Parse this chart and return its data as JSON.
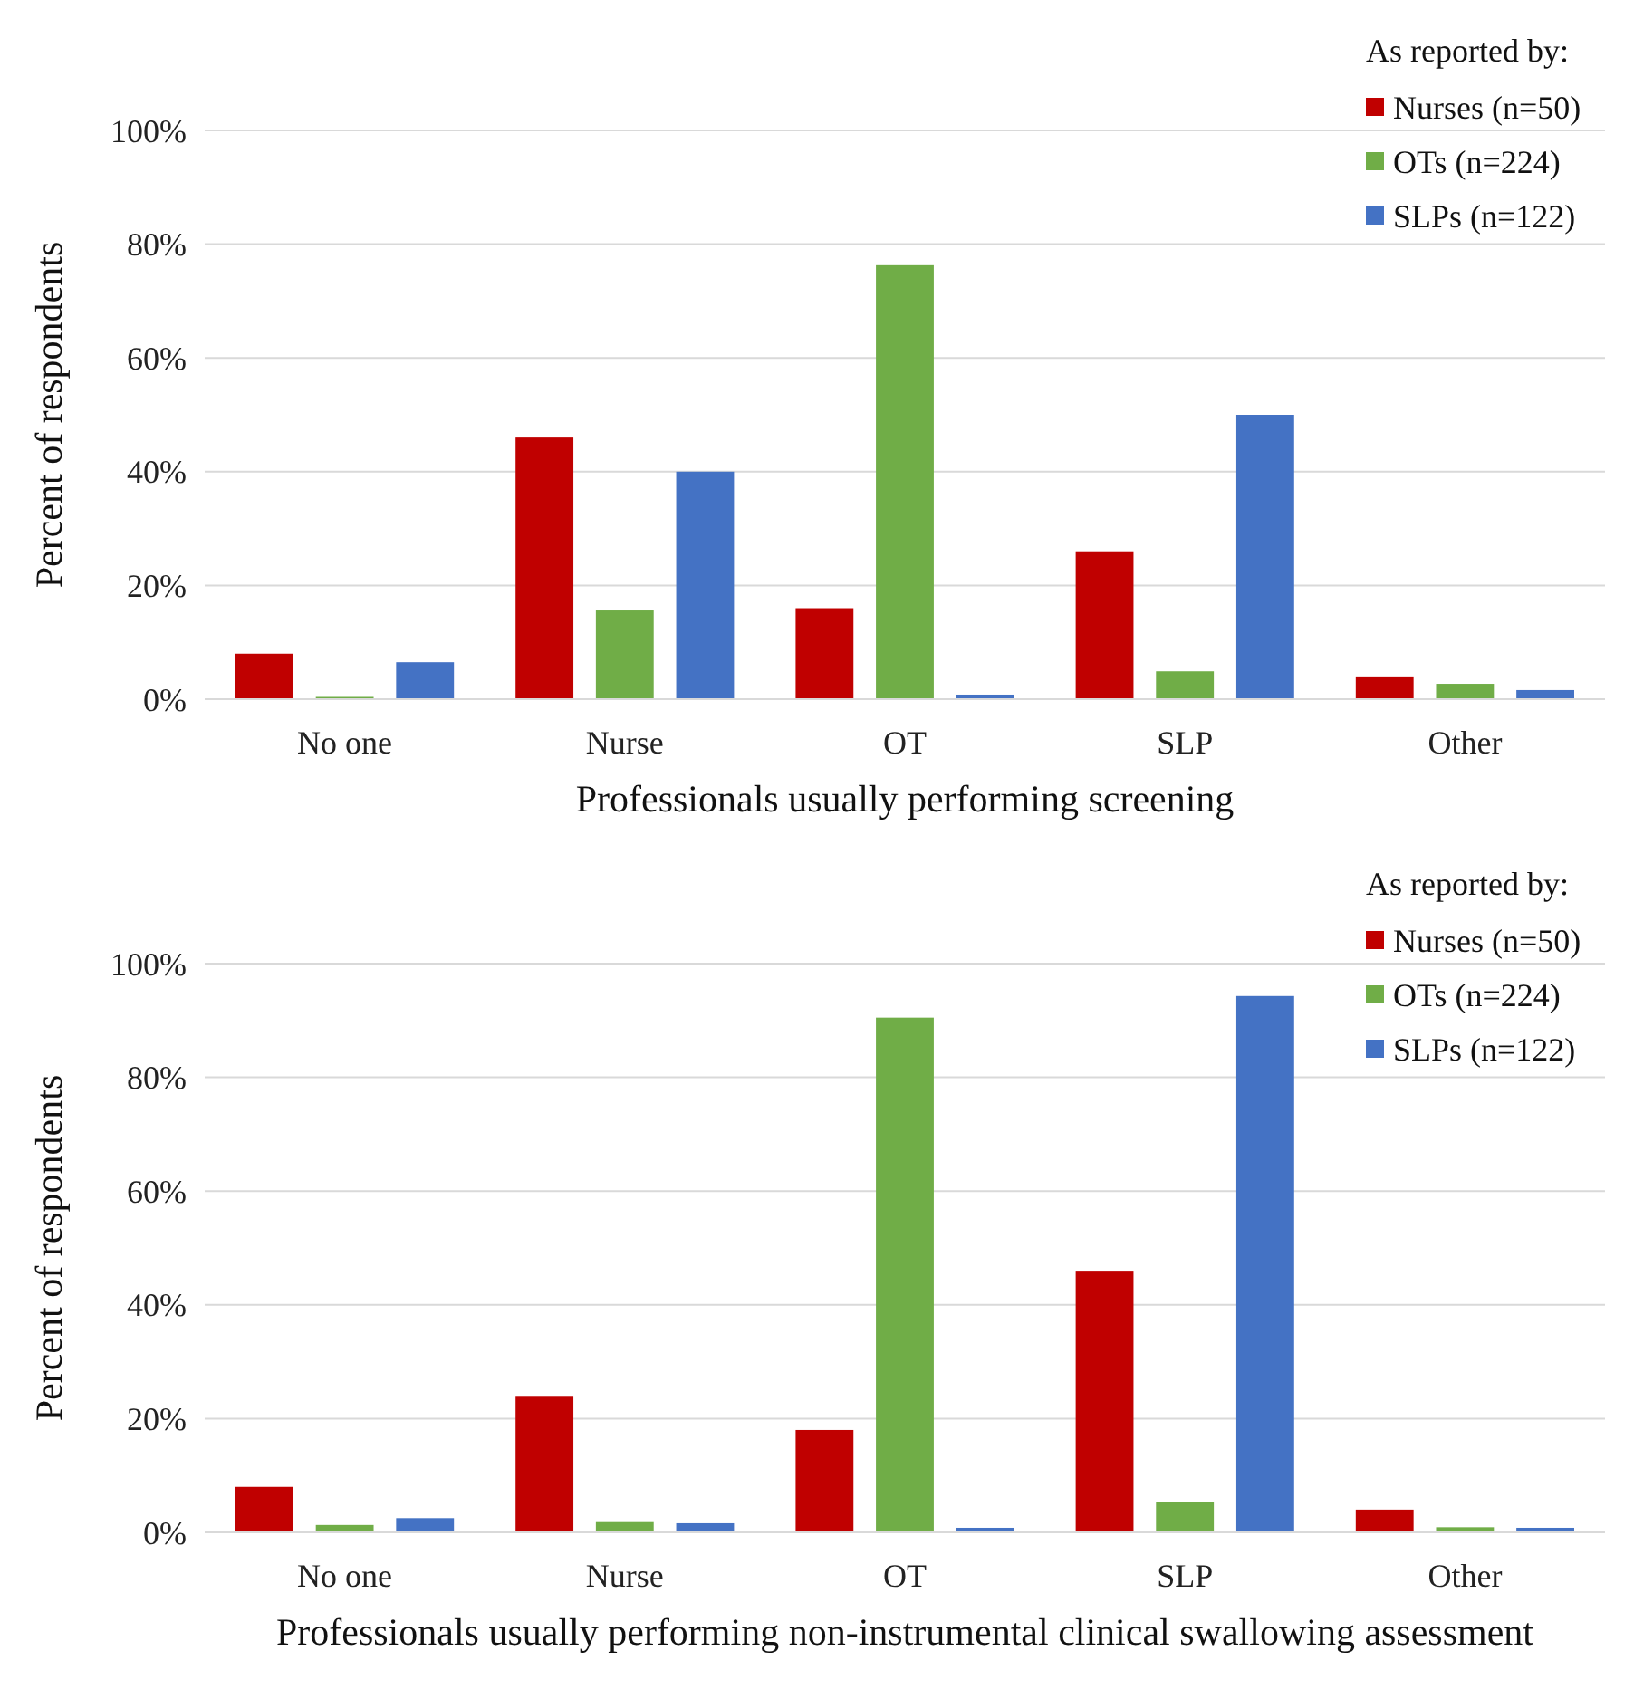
{
  "chart_data": [
    {
      "type": "bar",
      "xlabel": "Professionals usually performing screening",
      "ylabel": "Percent of respondents",
      "legend_title": "As reported by:",
      "categories": [
        "No one",
        "Nurse",
        "OT",
        "SLP",
        "Other"
      ],
      "series": [
        {
          "name": "Nurses (n=50)",
          "color": "#c00000",
          "values": [
            8,
            46,
            16,
            26,
            4
          ]
        },
        {
          "name": "OTs (n=224)",
          "color": "#70ad47",
          "values": [
            0.4,
            15.6,
            76.3,
            4.9,
            2.7
          ]
        },
        {
          "name": "SLPs (n=122)",
          "color": "#4472c4",
          "values": [
            6.5,
            40,
            0.8,
            50,
            1.6
          ]
        }
      ],
      "ylim": [
        0,
        100
      ],
      "yticks": [
        {
          "value": 0,
          "label": "0%"
        },
        {
          "value": 20,
          "label": "20%"
        },
        {
          "value": 40,
          "label": "40%"
        },
        {
          "value": 60,
          "label": "60%"
        },
        {
          "value": 80,
          "label": "80%"
        },
        {
          "value": 100,
          "label": "100%"
        }
      ],
      "grid": "y",
      "legend": "top right"
    },
    {
      "type": "bar",
      "xlabel": "Professionals usually performing non-instrumental clinical swallowing assessment",
      "ylabel": "Percent of respondents",
      "legend_title": "As reported by:",
      "categories": [
        "No one",
        "Nurse",
        "OT",
        "SLP",
        "Other"
      ],
      "series": [
        {
          "name": "Nurses (n=50)",
          "color": "#c00000",
          "values": [
            8,
            24,
            18,
            46,
            4
          ]
        },
        {
          "name": "OTs (n=224)",
          "color": "#70ad47",
          "values": [
            1.3,
            1.8,
            90.5,
            5.3,
            0.9
          ]
        },
        {
          "name": "SLPs (n=122)",
          "color": "#4472c4",
          "values": [
            2.5,
            1.6,
            0.8,
            94.3,
            0.8
          ]
        }
      ],
      "ylim": [
        0,
        100
      ],
      "yticks": [
        {
          "value": 0,
          "label": "0%"
        },
        {
          "value": 20,
          "label": "20%"
        },
        {
          "value": 40,
          "label": "40%"
        },
        {
          "value": 60,
          "label": "60%"
        },
        {
          "value": 80,
          "label": "80%"
        },
        {
          "value": 100,
          "label": "100%"
        }
      ],
      "grid": "y",
      "legend": "top right"
    }
  ]
}
